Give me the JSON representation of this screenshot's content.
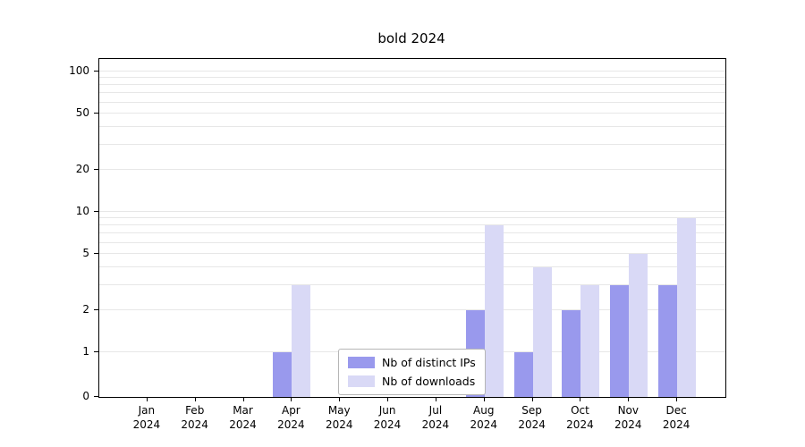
{
  "title": "bold 2024",
  "chart_data": {
    "type": "bar",
    "title": "bold 2024",
    "scale": "symlog",
    "grid": true,
    "legend_position": "bottom-center",
    "categories": [
      "Jan 2024",
      "Feb 2024",
      "Mar 2024",
      "Apr 2024",
      "May 2024",
      "Jun 2024",
      "Jul 2024",
      "Aug 2024",
      "Sep 2024",
      "Oct 2024",
      "Nov 2024",
      "Dec 2024"
    ],
    "series": [
      {
        "name": "Nb of distinct IPs",
        "color": "#9999ed",
        "values": [
          0,
          0,
          0,
          1,
          0,
          0,
          0,
          2,
          1,
          2,
          3,
          3
        ]
      },
      {
        "name": "Nb of downloads",
        "color": "#d9d9f6",
        "values": [
          0,
          0,
          0,
          3,
          0,
          0,
          0,
          8,
          4,
          3,
          5,
          9
        ]
      }
    ],
    "ylim": [
      0,
      100
    ],
    "yticks": [
      0,
      1,
      2,
      5,
      10,
      20,
      50,
      100
    ],
    "minor_gridlines": [
      1,
      2,
      3,
      4,
      5,
      6,
      7,
      8,
      9,
      10,
      20,
      30,
      40,
      50,
      60,
      70,
      80,
      90,
      100
    ],
    "xlabel": "",
    "ylabel": ""
  },
  "legend": {
    "items": [
      {
        "label": "Nb of distinct IPs",
        "color": "#9999ed"
      },
      {
        "label": "Nb of downloads",
        "color": "#d9d9f6"
      }
    ]
  }
}
